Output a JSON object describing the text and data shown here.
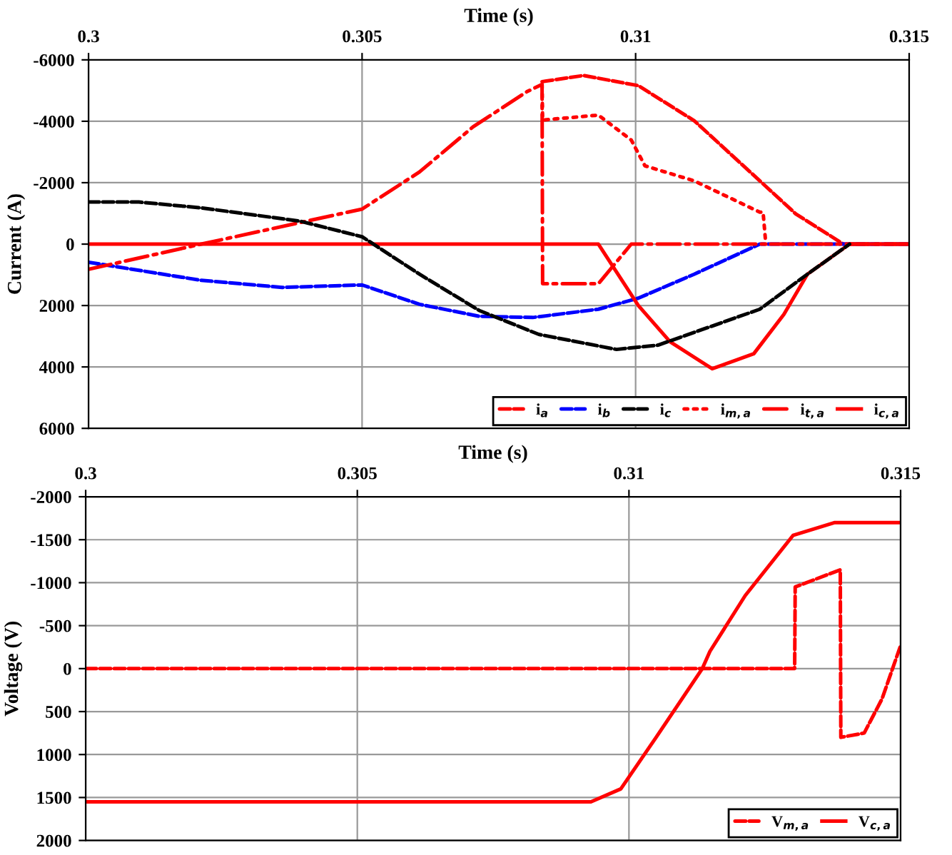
{
  "chart_data": [
    {
      "type": "line",
      "xlabel": "Time (s)",
      "ylabel": "Current (A)",
      "xlim": [
        0.3,
        0.315
      ],
      "xticks": [
        0.3,
        0.305,
        0.31,
        0.315
      ],
      "ylim": [
        6000,
        -6000
      ],
      "yticks": [
        -6000,
        -4000,
        -2000,
        0,
        2000,
        4000,
        6000
      ],
      "grid": true,
      "legend": "bottom right",
      "series": [
        {
          "name": "i$_{a}$",
          "color": "#ff0000",
          "line_style": "dashed",
          "x": [
            0.30829,
            0.30905,
            0.31005,
            0.31107,
            0.31227,
            0.31293,
            0.3138,
            0.315
          ],
          "values": [
            -5290,
            -5490,
            -5160,
            -4020,
            -2060,
            -980,
            0,
            0
          ]
        },
        {
          "name": "i$_{b}$",
          "color": "#0000ff",
          "line_style": "dashed",
          "x": [
            0.3,
            0.30206,
            0.30354,
            0.305,
            0.30605,
            0.30714,
            0.30812,
            0.30932,
            0.31005,
            0.31107,
            0.31227,
            0.315
          ],
          "values": [
            590,
            1180,
            1410,
            1330,
            1960,
            2350,
            2390,
            2120,
            1760,
            980,
            0,
            0
          ]
        },
        {
          "name": "i$_{c}$",
          "color": "#000000",
          "line_style": "dashed",
          "x": [
            0.3,
            0.30092,
            0.30206,
            0.30386,
            0.305,
            0.30605,
            0.30714,
            0.30823,
            0.30965,
            0.31041,
            0.31227,
            0.31314,
            0.31391
          ],
          "values": [
            -1370,
            -1370,
            -1180,
            -750,
            -240,
            980,
            2160,
            2940,
            3430,
            3290,
            2120,
            980,
            0
          ]
        },
        {
          "name": "i$_{m,a}$",
          "color": "#ff0000",
          "line_style": "dotted",
          "x": [
            0.30829,
            0.3083,
            0.30932,
            0.30992,
            0.31017,
            0.31107,
            0.31227,
            0.31233,
            0.31238
          ],
          "values": [
            -5200,
            -4040,
            -4200,
            -3390,
            -2550,
            -2060,
            -1040,
            -1040,
            0
          ]
        },
        {
          "name": "i$_{t,a}$",
          "color": "#ff0000",
          "line_style": "dashdot",
          "x": [
            0.3,
            0.30206,
            0.305,
            0.30605,
            0.30703,
            0.30801,
            0.30829,
            0.3083,
            0.30932,
            0.30992,
            0.315
          ],
          "values": [
            820,
            0,
            -1140,
            -2350,
            -3820,
            -4960,
            -5200,
            1290,
            1290,
            0,
            0
          ]
        },
        {
          "name": "i$_{c,a}$",
          "color": "#ff0000",
          "line_style": "solid",
          "x": [
            0.3,
            0.30932,
            0.31005,
            0.31063,
            0.3114,
            0.31216,
            0.31271,
            0.31314,
            0.31391,
            0.315
          ],
          "values": [
            0,
            0,
            2000,
            3180,
            4060,
            3570,
            2290,
            980,
            0,
            0
          ]
        }
      ]
    },
    {
      "type": "line",
      "xlabel": "Time (s)",
      "ylabel": "Voltage (V)",
      "xlim": [
        0.3,
        0.315
      ],
      "xticks": [
        0.3,
        0.305,
        0.31,
        0.315
      ],
      "ylim": [
        2000,
        -2000
      ],
      "yticks": [
        -2000,
        -1500,
        -1000,
        -500,
        0,
        500,
        1000,
        1500,
        2000
      ],
      "grid": true,
      "legend": "bottom right",
      "series": [
        {
          "name": "V$_{m,a}$",
          "color": "#ff0000",
          "line_style": "dashed",
          "x": [
            0.3,
            0.31305,
            0.31306,
            0.31389,
            0.3139,
            0.31433,
            0.31466,
            0.31499
          ],
          "values": [
            0,
            0,
            -950,
            -1150,
            800,
            750,
            350,
            -250
          ]
        },
        {
          "name": "V$_{c,a}$",
          "color": "#ff0000",
          "line_style": "solid",
          "x": [
            0.3,
            0.3093,
            0.30985,
            0.3105,
            0.31135,
            0.31149,
            0.31214,
            0.31302,
            0.31379,
            0.315
          ],
          "values": [
            1550,
            1550,
            1400,
            800,
            0,
            -200,
            -850,
            -1550,
            -1700,
            -1700
          ]
        }
      ]
    }
  ]
}
